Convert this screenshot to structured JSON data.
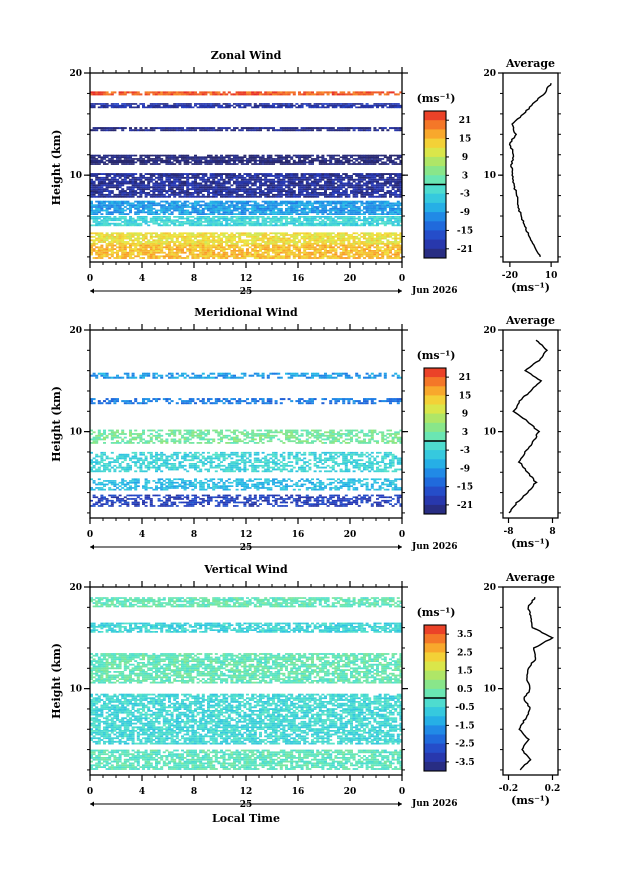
{
  "chart_data": [
    {
      "type": "heatmap",
      "title": "Zonal Wind",
      "ylabel": "Height (km)",
      "xlabel": "",
      "x_ticks": [
        "0",
        "4",
        "8",
        "12",
        "16",
        "20",
        "0"
      ],
      "y_ticks": [
        "10",
        "20"
      ],
      "ylim": [
        1.5,
        20
      ],
      "xlim": [
        0,
        24
      ],
      "day_label": "25",
      "date_label": "Jun 2026",
      "colorbar": {
        "unit": "(ms⁻¹)",
        "ticks": [
          "21",
          "15",
          "9",
          "3",
          "-3",
          "-9",
          "-15",
          "-21"
        ],
        "range": [
          -24,
          24
        ]
      },
      "bands": [
        {
          "h": 18.0,
          "value": 21,
          "hw": 0.2
        },
        {
          "h": 16.8,
          "value": -20,
          "hw": 0.25
        },
        {
          "h": 14.5,
          "value": -22,
          "hw": 0.2
        },
        {
          "h": 11.5,
          "value": -24,
          "hw": 0.5
        },
        {
          "h": 9.0,
          "value": -21,
          "hw": 1.2
        },
        {
          "h": 6.8,
          "value": -9,
          "hw": 0.7
        },
        {
          "h": 5.5,
          "value": -3,
          "hw": 0.5
        },
        {
          "h": 3.8,
          "value": 12,
          "hw": 0.6
        },
        {
          "h": 2.5,
          "value": 15,
          "hw": 0.7
        }
      ],
      "profile": {
        "title": "Average",
        "xlabel": "(ms⁻¹)",
        "x_ticks": [
          "-20",
          "10"
        ],
        "xlim": [
          -25,
          15
        ],
        "heights": [
          2,
          3,
          4,
          5,
          6,
          7,
          8,
          9,
          10,
          11,
          12,
          13,
          14,
          15,
          16,
          17,
          18,
          19
        ],
        "values": [
          2,
          -2,
          -6,
          -9,
          -12,
          -14,
          -15,
          -17,
          -18,
          -19,
          -17,
          -20,
          -16,
          -18,
          -10,
          -3,
          5,
          10
        ]
      }
    },
    {
      "type": "heatmap",
      "title": "Meridional Wind",
      "ylabel": "Height (km)",
      "xlabel": "",
      "x_ticks": [
        "0",
        "4",
        "8",
        "12",
        "16",
        "20",
        "0"
      ],
      "y_ticks": [
        "10",
        "20"
      ],
      "ylim": [
        1.5,
        20
      ],
      "xlim": [
        0,
        24
      ],
      "day_label": "25",
      "date_label": "Jun 2026",
      "colorbar": {
        "unit": "(ms⁻¹)",
        "ticks": [
          "21",
          "15",
          "9",
          "3",
          "-3",
          "-9",
          "-15",
          "-21"
        ],
        "range": [
          -24,
          24
        ]
      },
      "bands": [
        {
          "h": 15.5,
          "value": -9,
          "hw": 0.3
        },
        {
          "h": 13.0,
          "value": -12,
          "hw": 0.3
        },
        {
          "h": 9.5,
          "value": 3,
          "hw": 0.7
        },
        {
          "h": 7.0,
          "value": -3,
          "hw": 1.0
        },
        {
          "h": 4.8,
          "value": -6,
          "hw": 0.6
        },
        {
          "h": 3.2,
          "value": -18,
          "hw": 0.6
        }
      ],
      "profile": {
        "title": "Average",
        "xlabel": "(ms⁻¹)",
        "x_ticks": [
          "-8",
          "8"
        ],
        "xlim": [
          -10,
          10
        ],
        "heights": [
          2,
          3,
          4,
          5,
          6,
          7,
          8,
          9,
          10,
          11,
          12,
          13,
          14,
          15,
          16,
          17,
          18,
          19
        ],
        "values": [
          -8,
          -5,
          -1,
          2,
          -1,
          -4,
          -2,
          1,
          3,
          -1,
          -6,
          -4,
          0,
          4,
          -2,
          3,
          6,
          2
        ]
      }
    },
    {
      "type": "heatmap",
      "title": "Vertical Wind",
      "ylabel": "Height (km)",
      "xlabel": "Local Time",
      "x_ticks": [
        "0",
        "4",
        "8",
        "12",
        "16",
        "20",
        "0"
      ],
      "y_ticks": [
        "10",
        "20"
      ],
      "ylim": [
        1.5,
        20
      ],
      "xlim": [
        0,
        24
      ],
      "day_label": "25",
      "date_label": "Jun 2026",
      "colorbar": {
        "unit": "(ms⁻¹)",
        "ticks": [
          "3.5",
          "2.5",
          "1.5",
          "0.5",
          "-0.5",
          "-1.5",
          "-2.5",
          "-3.5"
        ],
        "range": [
          -4,
          4
        ]
      },
      "bands": [
        {
          "h": 18.5,
          "value": 0.2,
          "hw": 0.5
        },
        {
          "h": 16.0,
          "value": -0.5,
          "hw": 0.5
        },
        {
          "h": 12.0,
          "value": 0.2,
          "hw": 1.5
        },
        {
          "h": 7.0,
          "value": -0.4,
          "hw": 2.5
        },
        {
          "h": 3.0,
          "value": 0.1,
          "hw": 1.0
        }
      ],
      "profile": {
        "title": "Average",
        "xlabel": "(ms⁻¹)",
        "x_ticks": [
          "-0.2",
          "0.2"
        ],
        "xlim": [
          -0.25,
          0.25
        ],
        "heights": [
          2,
          3,
          4,
          5,
          6,
          7,
          8,
          9,
          10,
          11,
          12,
          13,
          14,
          15,
          16,
          17,
          18,
          19
        ],
        "values": [
          -0.1,
          0,
          -0.08,
          -0.02,
          -0.1,
          -0.05,
          0,
          -0.06,
          0,
          -0.04,
          -0.02,
          0.05,
          0.03,
          0.2,
          0.02,
          0.0,
          -0.02,
          0.04
        ]
      }
    }
  ]
}
